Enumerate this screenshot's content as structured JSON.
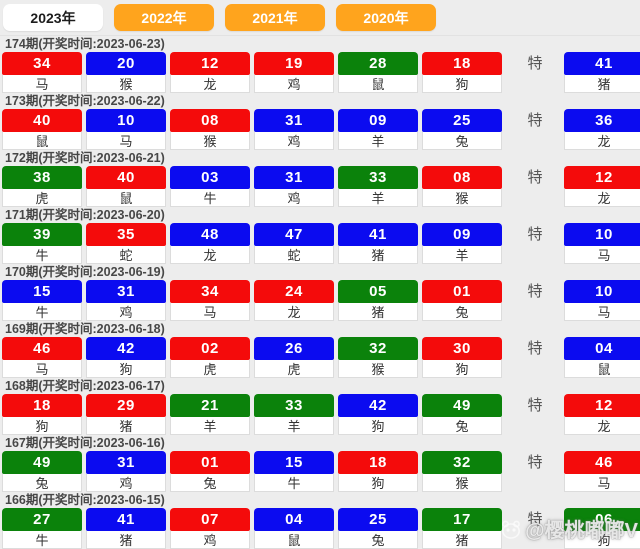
{
  "tabs": [
    {
      "label": "2023年",
      "active": true
    },
    {
      "label": "2022年",
      "active": false
    },
    {
      "label": "2021年",
      "active": false
    },
    {
      "label": "2020年",
      "active": false
    }
  ],
  "special_label": "特",
  "watermark": {
    "text": "@樱桃嘟嘟V",
    "icon": "panda-icon"
  },
  "colors": {
    "red": "#f40b0b",
    "blue": "#0b0bf0",
    "green": "#0b820b"
  },
  "draws": [
    {
      "period_label": "174期(开奖时间:2023-06-23)",
      "numbers": [
        {
          "num": "34",
          "color": "red",
          "zodiac": "马"
        },
        {
          "num": "20",
          "color": "blue",
          "zodiac": "猴"
        },
        {
          "num": "12",
          "color": "red",
          "zodiac": "龙"
        },
        {
          "num": "19",
          "color": "red",
          "zodiac": "鸡"
        },
        {
          "num": "28",
          "color": "green",
          "zodiac": "鼠"
        },
        {
          "num": "18",
          "color": "red",
          "zodiac": "狗"
        }
      ],
      "special": {
        "num": "41",
        "color": "blue",
        "zodiac": "猪"
      }
    },
    {
      "period_label": "173期(开奖时间:2023-06-22)",
      "numbers": [
        {
          "num": "40",
          "color": "red",
          "zodiac": "鼠"
        },
        {
          "num": "10",
          "color": "blue",
          "zodiac": "马"
        },
        {
          "num": "08",
          "color": "red",
          "zodiac": "猴"
        },
        {
          "num": "31",
          "color": "blue",
          "zodiac": "鸡"
        },
        {
          "num": "09",
          "color": "blue",
          "zodiac": "羊"
        },
        {
          "num": "25",
          "color": "blue",
          "zodiac": "兔"
        }
      ],
      "special": {
        "num": "36",
        "color": "blue",
        "zodiac": "龙"
      }
    },
    {
      "period_label": "172期(开奖时间:2023-06-21)",
      "numbers": [
        {
          "num": "38",
          "color": "green",
          "zodiac": "虎"
        },
        {
          "num": "40",
          "color": "red",
          "zodiac": "鼠"
        },
        {
          "num": "03",
          "color": "blue",
          "zodiac": "牛"
        },
        {
          "num": "31",
          "color": "blue",
          "zodiac": "鸡"
        },
        {
          "num": "33",
          "color": "green",
          "zodiac": "羊"
        },
        {
          "num": "08",
          "color": "red",
          "zodiac": "猴"
        }
      ],
      "special": {
        "num": "12",
        "color": "red",
        "zodiac": "龙"
      }
    },
    {
      "period_label": "171期(开奖时间:2023-06-20)",
      "numbers": [
        {
          "num": "39",
          "color": "green",
          "zodiac": "牛"
        },
        {
          "num": "35",
          "color": "red",
          "zodiac": "蛇"
        },
        {
          "num": "48",
          "color": "blue",
          "zodiac": "龙"
        },
        {
          "num": "47",
          "color": "blue",
          "zodiac": "蛇"
        },
        {
          "num": "41",
          "color": "blue",
          "zodiac": "猪"
        },
        {
          "num": "09",
          "color": "blue",
          "zodiac": "羊"
        }
      ],
      "special": {
        "num": "10",
        "color": "blue",
        "zodiac": "马"
      }
    },
    {
      "period_label": "170期(开奖时间:2023-06-19)",
      "numbers": [
        {
          "num": "15",
          "color": "blue",
          "zodiac": "牛"
        },
        {
          "num": "31",
          "color": "blue",
          "zodiac": "鸡"
        },
        {
          "num": "34",
          "color": "red",
          "zodiac": "马"
        },
        {
          "num": "24",
          "color": "red",
          "zodiac": "龙"
        },
        {
          "num": "05",
          "color": "green",
          "zodiac": "猪"
        },
        {
          "num": "01",
          "color": "red",
          "zodiac": "兔"
        }
      ],
      "special": {
        "num": "10",
        "color": "blue",
        "zodiac": "马"
      }
    },
    {
      "period_label": "169期(开奖时间:2023-06-18)",
      "numbers": [
        {
          "num": "46",
          "color": "red",
          "zodiac": "马"
        },
        {
          "num": "42",
          "color": "blue",
          "zodiac": "狗"
        },
        {
          "num": "02",
          "color": "red",
          "zodiac": "虎"
        },
        {
          "num": "26",
          "color": "blue",
          "zodiac": "虎"
        },
        {
          "num": "32",
          "color": "green",
          "zodiac": "猴"
        },
        {
          "num": "30",
          "color": "red",
          "zodiac": "狗"
        }
      ],
      "special": {
        "num": "04",
        "color": "blue",
        "zodiac": "鼠"
      }
    },
    {
      "period_label": "168期(开奖时间:2023-06-17)",
      "numbers": [
        {
          "num": "18",
          "color": "red",
          "zodiac": "狗"
        },
        {
          "num": "29",
          "color": "red",
          "zodiac": "猪"
        },
        {
          "num": "21",
          "color": "green",
          "zodiac": "羊"
        },
        {
          "num": "33",
          "color": "green",
          "zodiac": "羊"
        },
        {
          "num": "42",
          "color": "blue",
          "zodiac": "狗"
        },
        {
          "num": "49",
          "color": "green",
          "zodiac": "兔"
        }
      ],
      "special": {
        "num": "12",
        "color": "red",
        "zodiac": "龙"
      }
    },
    {
      "period_label": "167期(开奖时间:2023-06-16)",
      "numbers": [
        {
          "num": "49",
          "color": "green",
          "zodiac": "兔"
        },
        {
          "num": "31",
          "color": "blue",
          "zodiac": "鸡"
        },
        {
          "num": "01",
          "color": "red",
          "zodiac": "兔"
        },
        {
          "num": "15",
          "color": "blue",
          "zodiac": "牛"
        },
        {
          "num": "18",
          "color": "red",
          "zodiac": "狗"
        },
        {
          "num": "32",
          "color": "green",
          "zodiac": "猴"
        }
      ],
      "special": {
        "num": "46",
        "color": "red",
        "zodiac": "马"
      }
    },
    {
      "period_label": "166期(开奖时间:2023-06-15)",
      "numbers": [
        {
          "num": "27",
          "color": "green",
          "zodiac": "牛"
        },
        {
          "num": "41",
          "color": "blue",
          "zodiac": "猪"
        },
        {
          "num": "07",
          "color": "red",
          "zodiac": "鸡"
        },
        {
          "num": "04",
          "color": "blue",
          "zodiac": "鼠"
        },
        {
          "num": "25",
          "color": "blue",
          "zodiac": "兔"
        },
        {
          "num": "17",
          "color": "green",
          "zodiac": "猪"
        }
      ],
      "special": {
        "num": "06",
        "color": "green",
        "zodiac": "狗"
      }
    }
  ]
}
